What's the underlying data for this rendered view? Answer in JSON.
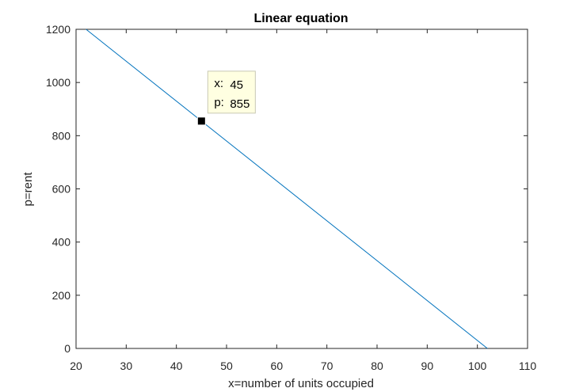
{
  "chart_data": {
    "type": "line",
    "title": "Linear equation",
    "xlabel": "x=number of units occupied",
    "ylabel": "p=rent",
    "xlim": [
      20,
      110
    ],
    "ylim": [
      0,
      1200
    ],
    "xticks": [
      20,
      30,
      40,
      50,
      60,
      70,
      80,
      90,
      100,
      110
    ],
    "yticks": [
      0,
      200,
      400,
      600,
      800,
      1000,
      1200
    ],
    "grid": false,
    "colors": {
      "line": "#0072bd",
      "axes": "#262626",
      "marker": "#000000",
      "datatip_bg": "#ffffe1"
    },
    "series": [
      {
        "x": [
          22,
          102
        ],
        "y": [
          1200,
          0
        ]
      }
    ],
    "datatip": {
      "x_label": "x:",
      "x_value": "45",
      "y_label": "p:",
      "y_value": "855",
      "x": 45,
      "y": 855
    }
  }
}
